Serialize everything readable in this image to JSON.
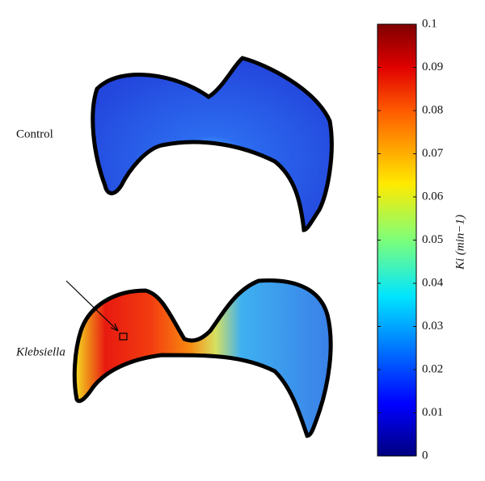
{
  "labels": {
    "control": "Control",
    "infected": "Klebsiella"
  },
  "colorbar": {
    "label": "Ki (min−1)",
    "lim": [
      0,
      0.1
    ],
    "ticks": [
      0,
      0.01,
      0.02,
      0.03,
      0.04,
      0.05,
      0.06,
      0.07,
      0.08,
      0.09,
      0.1
    ]
  }
}
